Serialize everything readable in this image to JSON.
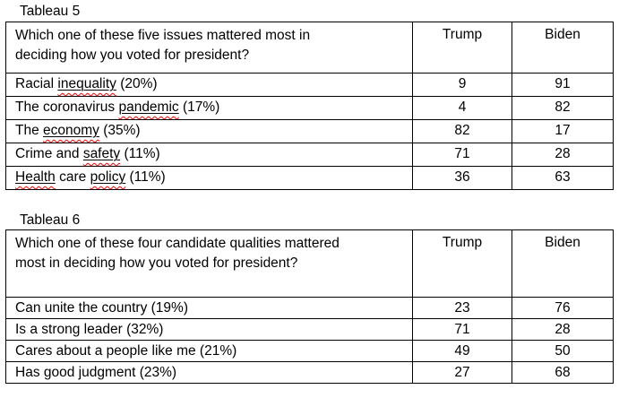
{
  "colors": {
    "background": "#ffffff",
    "text": "#000000",
    "table_border": "#000000",
    "spellcheck_squiggle": "#ff0000"
  },
  "tables": [
    {
      "title": "Tableau 5",
      "question": "Which one of these five issues mattered most in\ndeciding how you voted for president?",
      "columns": [
        "Trump",
        "Biden"
      ],
      "rows": [
        {
          "segments": [
            {
              "text": "Racial ",
              "marked": false
            },
            {
              "text": "inequality",
              "marked": true
            },
            {
              "text": " (20%)",
              "marked": false
            }
          ],
          "trump": "9",
          "biden": "91"
        },
        {
          "segments": [
            {
              "text": "The coronavirus ",
              "marked": false
            },
            {
              "text": "pandemic",
              "marked": true
            },
            {
              "text": " (17%)",
              "marked": false
            }
          ],
          "trump": "4",
          "biden": "82"
        },
        {
          "segments": [
            {
              "text": "The ",
              "marked": false
            },
            {
              "text": "economy",
              "marked": true
            },
            {
              "text": " (35%)",
              "marked": false
            }
          ],
          "trump": "82",
          "biden": "17"
        },
        {
          "segments": [
            {
              "text": "Crime and ",
              "marked": false
            },
            {
              "text": "safety",
              "marked": true
            },
            {
              "text": " (11%)",
              "marked": false
            }
          ],
          "trump": "71",
          "biden": "28"
        },
        {
          "segments": [
            {
              "text": "Health",
              "marked": true
            },
            {
              "text": " care ",
              "marked": false
            },
            {
              "text": "policy",
              "marked": true
            },
            {
              "text": " (11%)",
              "marked": false
            }
          ],
          "trump": "36",
          "biden": "63"
        }
      ]
    },
    {
      "title": "Tableau 6",
      "question": "Which one of these four candidate qualities mattered\nmost in deciding how you voted for president?",
      "columns": [
        "Trump",
        "Biden"
      ],
      "rows": [
        {
          "segments": [
            {
              "text": "Can unite the country (19%)",
              "marked": false
            }
          ],
          "trump": "23",
          "biden": "76"
        },
        {
          "segments": [
            {
              "text": "Is a strong leader (32%)",
              "marked": false
            }
          ],
          "trump": "71",
          "biden": "28"
        },
        {
          "segments": [
            {
              "text": "Cares about a people like me (21%)",
              "marked": false
            }
          ],
          "trump": "49",
          "biden": "50"
        },
        {
          "segments": [
            {
              "text": "Has good judgment (23%)",
              "marked": false
            }
          ],
          "trump": "27",
          "biden": "68"
        }
      ]
    }
  ]
}
